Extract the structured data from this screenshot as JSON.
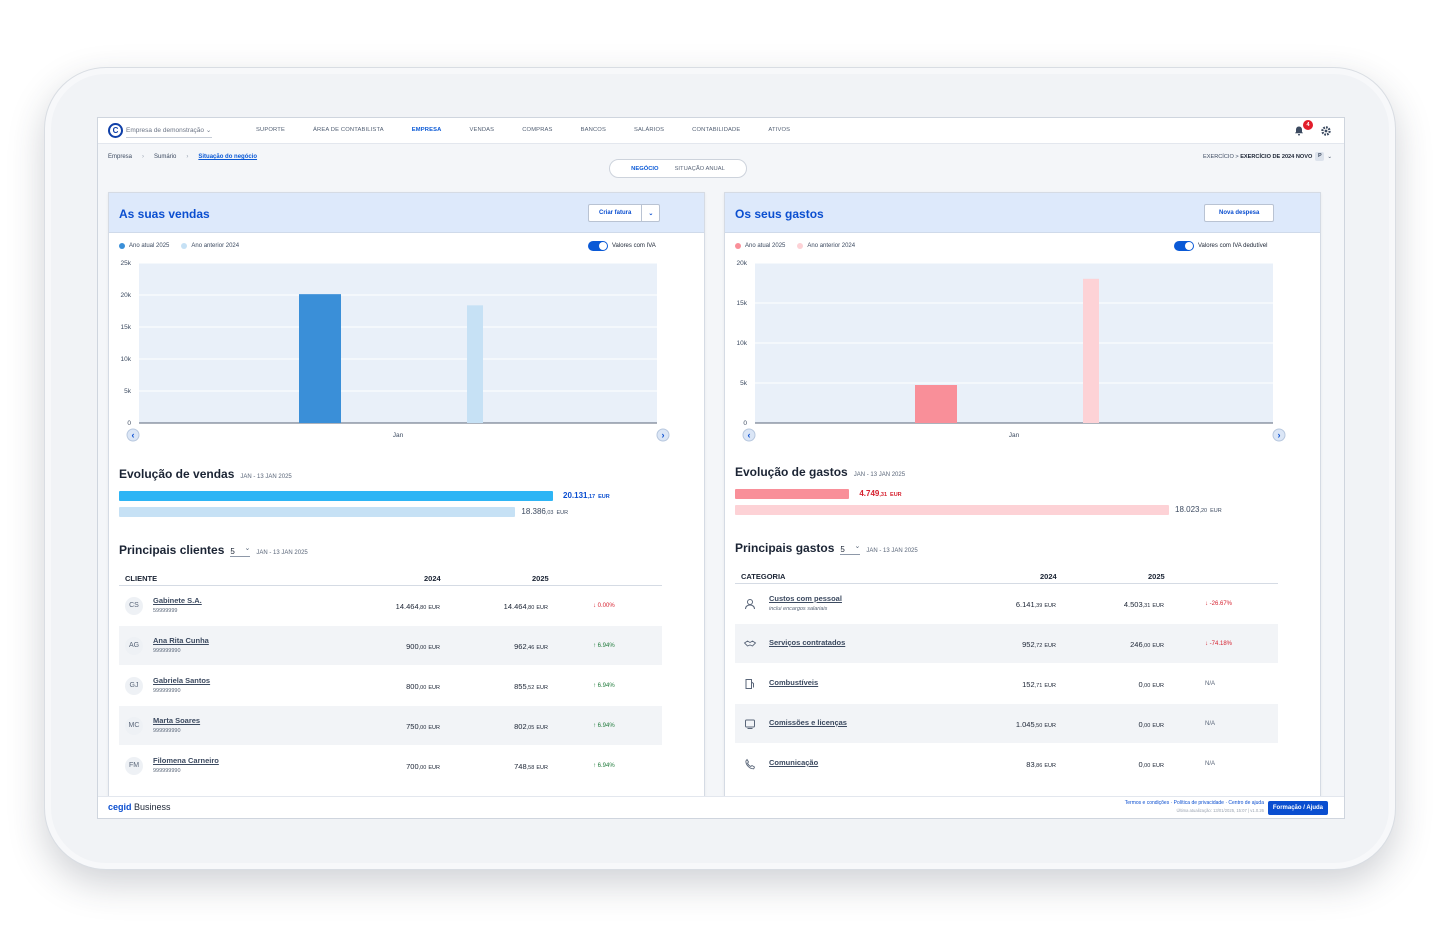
{
  "colors": {
    "accent": "#0a59d6",
    "sales_current": "#3a8fd8",
    "sales_prev": "#c6e1f5",
    "sales_bar_current": "#2eb5f5",
    "expense_current": "#f98f99",
    "expense_prev": "#fdd2d6"
  },
  "header": {
    "company": "Empresa de demonstração",
    "nav": [
      "SUPORTE",
      "ÁREA DE CONTABILISTA",
      "EMPRESA",
      "VENDAS",
      "COMPRAS",
      "BANCOS",
      "SALÁRIOS",
      "CONTABILIDADE",
      "ATIVOS"
    ],
    "active_nav": "EMPRESA",
    "notifications": "4"
  },
  "breadcrumb": [
    "Empresa",
    "Sumário",
    "Situação do negócio"
  ],
  "tabs": [
    "NEGÓCIO",
    "SITUAÇÃO ANUAL"
  ],
  "exercicio": {
    "label": "EXERCÍCIO >",
    "value": "EXERCÍCIO DE 2024 NOVO",
    "badge": "P"
  },
  "sales": {
    "title": "As suas vendas",
    "button": "Criar fatura",
    "legend_current": "Ano atual 2025",
    "legend_prev": "Ano anterior 2024",
    "toggle": "Valores com IVA",
    "evolution_title": "Evolução de vendas",
    "evolution_period": "JAN - 13 JAN 2025",
    "evo_current_int": "20.131",
    "evo_current_dec": ",17",
    "evo_prev_int": "18.386",
    "evo_prev_dec": ",03",
    "evo_progress": {
      "current_2025": 20131.17,
      "previous_2024": 18386.03
    },
    "currency": "EUR",
    "top_title": "Principais clientes",
    "top_count": "5",
    "top_period": "JAN - 13 JAN 2025",
    "col_client": "CLIENTE",
    "col_2024": "2024",
    "col_2025": "2025",
    "rows": [
      {
        "initials": "CS",
        "name": "Gabinete S.A.",
        "nif": "59999999",
        "v2024": "14.464",
        "d2024": ",80",
        "v2025": "14.464",
        "d2025": ",80",
        "delta": "↓ 0.00%"
      },
      {
        "initials": "AG",
        "name": "Ana Rita Cunha",
        "nif": "999999990",
        "v2024": "900",
        "d2024": ",00",
        "v2025": "962",
        "d2025": ",46",
        "delta": "↑ 6.94%"
      },
      {
        "initials": "GJ",
        "name": "Gabriela Santos",
        "nif": "999999990",
        "v2024": "800",
        "d2024": ",00",
        "v2025": "855",
        "d2025": ",52",
        "delta": "↑ 6.94%"
      },
      {
        "initials": "MC",
        "name": "Marta Soares",
        "nif": "999999990",
        "v2024": "750",
        "d2024": ",00",
        "v2025": "802",
        "d2025": ",05",
        "delta": "↑ 6.94%"
      },
      {
        "initials": "FM",
        "name": "Filomena Carneiro",
        "nif": "999999990",
        "v2024": "700",
        "d2024": ",00",
        "v2025": "748",
        "d2025": ",58",
        "delta": "↑ 6.94%"
      }
    ]
  },
  "expenses": {
    "title": "Os seus gastos",
    "button": "Nova despesa",
    "legend_current": "Ano atual 2025",
    "legend_prev": "Ano anterior 2024",
    "toggle": "Valores com IVA dedutível",
    "evolution_title": "Evolução de gastos",
    "evolution_period": "JAN - 13 JAN 2025",
    "evo_current_int": "4.749",
    "evo_current_dec": ",31",
    "evo_prev_int": "18.023",
    "evo_prev_dec": ",20",
    "evo_progress": {
      "current_2025": 4749.31,
      "previous_2024": 18023.2
    },
    "currency": "EUR",
    "top_title": "Principais gastos",
    "top_count": "5",
    "top_period": "JAN - 13 JAN 2025",
    "col_category": "CATEGORIA",
    "col_2024": "2024",
    "col_2025": "2025",
    "rows": [
      {
        "icon": "person-icon",
        "name": "Custos com pessoal",
        "sub": "inclui encargos salariais",
        "v2024": "6.141",
        "d2024": ",39",
        "v2025": "4.503",
        "d2025": ",31",
        "delta": "↓ -26.67%",
        "dir": "down"
      },
      {
        "icon": "handshake-icon",
        "name": "Serviços contratados",
        "sub": "",
        "v2024": "952",
        "d2024": ",72",
        "v2025": "246",
        "d2025": ",00",
        "delta": "↓ -74.18%",
        "dir": "down"
      },
      {
        "icon": "fuel-icon",
        "name": "Combustíveis",
        "sub": "",
        "v2024": "152",
        "d2024": ",71",
        "v2025": "0",
        "d2025": ",00",
        "delta": "N/A",
        "dir": "na"
      },
      {
        "icon": "license-icon",
        "name": "Comissões e licenças",
        "sub": "",
        "v2024": "1.045",
        "d2024": ",50",
        "v2025": "0",
        "d2025": ",00",
        "delta": "N/A",
        "dir": "na"
      },
      {
        "icon": "phone-icon",
        "name": "Comunicação",
        "sub": "",
        "v2024": "83",
        "d2024": ",86",
        "v2025": "0",
        "d2025": ",00",
        "delta": "N/A",
        "dir": "na"
      }
    ]
  },
  "chart_data": [
    {
      "type": "bar",
      "categories": [
        "Jan"
      ],
      "series": [
        {
          "name": "Ano atual 2025",
          "values": [
            20131.17
          ]
        },
        {
          "name": "Ano anterior 2024",
          "values": [
            18386.03
          ]
        }
      ],
      "yticks": [
        "25k",
        "20k",
        "15k",
        "10k",
        "5k",
        "0"
      ],
      "ylim": [
        0,
        25000
      ],
      "xlabel": "",
      "ylabel": ""
    },
    {
      "type": "bar",
      "categories": [
        "Jan"
      ],
      "series": [
        {
          "name": "Ano atual 2025",
          "values": [
            4749.31
          ]
        },
        {
          "name": "Ano anterior 2024",
          "values": [
            18023.2
          ]
        }
      ],
      "yticks": [
        "20k",
        "15k",
        "10k",
        "5k",
        "0"
      ],
      "ylim": [
        0,
        20000
      ],
      "xlabel": "",
      "ylabel": ""
    }
  ],
  "footer": {
    "brand_bold": "cegid",
    "brand_rest": " Business",
    "links": "Termos e condições · Política de privacidade · Centro de ajuda",
    "updated": "Última atualização: 13/01/2025, 15:07 | v1.0.26",
    "help": "Formação / Ajuda"
  }
}
